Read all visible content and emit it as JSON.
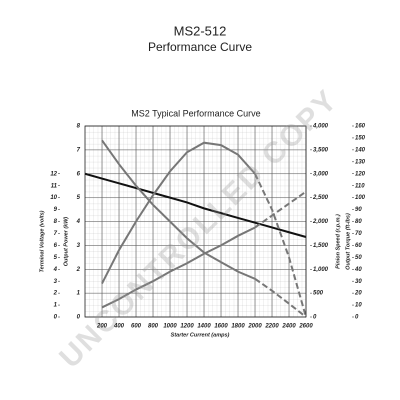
{
  "title": "MS2-512",
  "subtitle": "Performance Curve",
  "watermark": "UNCONTROLLED COPY",
  "chart_data": {
    "type": "line",
    "title": "MS2 Typical Performance Curve",
    "x_label": "Starter Current (amps)",
    "x": [
      0,
      200,
      400,
      600,
      800,
      1000,
      1200,
      1400,
      1600,
      1800,
      2000,
      2200,
      2400,
      2600
    ],
    "xlim": [
      0,
      2600
    ],
    "xticks": [
      200,
      400,
      600,
      800,
      1000,
      1200,
      1400,
      1600,
      1800,
      2000,
      2200,
      2400,
      2600
    ],
    "axes": {
      "voltage": {
        "label": "Terminal Voltage (volts)",
        "lim": [
          0,
          16
        ],
        "ticks": [
          0,
          1,
          2,
          3,
          4,
          5,
          6,
          7,
          8,
          9,
          10,
          11,
          12
        ]
      },
      "power": {
        "label": "Output Power (kW)",
        "lim": [
          0,
          8
        ],
        "ticks": [
          0,
          1,
          2,
          3,
          4,
          5,
          6,
          7,
          8
        ]
      },
      "speed": {
        "label": "Pinion Speed (r.p.m.)",
        "lim": [
          0,
          4000
        ],
        "ticks": [
          0,
          500,
          {
            "value": 1000,
            "label": "1,000"
          },
          {
            "value": 1500,
            "label": "1,500"
          },
          {
            "value": 2000,
            "label": "2,000"
          },
          {
            "value": 2500,
            "label": "2,500"
          },
          {
            "value": 3000,
            "label": "3,000"
          },
          {
            "value": 3500,
            "label": "3,500"
          },
          {
            "value": 4000,
            "label": "4,000"
          }
        ]
      },
      "torque": {
        "label": "Output Torque (ft-lbs)",
        "lim": [
          0,
          160
        ],
        "ticks": [
          0,
          10,
          20,
          30,
          40,
          50,
          60,
          70,
          80,
          90,
          100,
          110,
          120,
          130,
          140,
          150,
          160
        ]
      }
    },
    "grid": true,
    "series": [
      {
        "axis": "voltage",
        "color": "#111111",
        "dash": false,
        "values": [
          12,
          11.6,
          11.2,
          10.8,
          10.4,
          10.0,
          9.6,
          9.1,
          8.7,
          8.3,
          7.9,
          7.5,
          7.1,
          6.7
        ]
      },
      {
        "axis": "power",
        "color": "#777777",
        "dash": false,
        "values": [
          null,
          1.4,
          2.8,
          4.0,
          5.1,
          6.1,
          6.9,
          7.3,
          7.2,
          6.8,
          6.0,
          null,
          null,
          null
        ]
      },
      {
        "axis": "power",
        "color": "#777777",
        "dash": true,
        "values": [
          null,
          null,
          null,
          null,
          null,
          null,
          null,
          null,
          null,
          null,
          6.0,
          4.5,
          2.5,
          0
        ]
      },
      {
        "axis": "speed",
        "color": "#777777",
        "dash": false,
        "values": [
          null,
          3700,
          3200,
          2750,
          2350,
          2000,
          1650,
          1350,
          1150,
          950,
          800,
          null,
          null,
          null
        ]
      },
      {
        "axis": "speed",
        "color": "#777777",
        "dash": true,
        "values": [
          null,
          null,
          null,
          null,
          null,
          null,
          null,
          null,
          null,
          null,
          800,
          550,
          280,
          0
        ]
      },
      {
        "axis": "torque",
        "color": "#777777",
        "dash": false,
        "values": [
          null,
          8,
          15,
          23,
          30,
          38,
          45,
          53,
          60,
          68,
          75,
          null,
          null,
          null
        ]
      },
      {
        "axis": "torque",
        "color": "#777777",
        "dash": true,
        "values": [
          null,
          null,
          null,
          null,
          null,
          null,
          null,
          null,
          null,
          null,
          75,
          85,
          95,
          105
        ]
      }
    ]
  }
}
